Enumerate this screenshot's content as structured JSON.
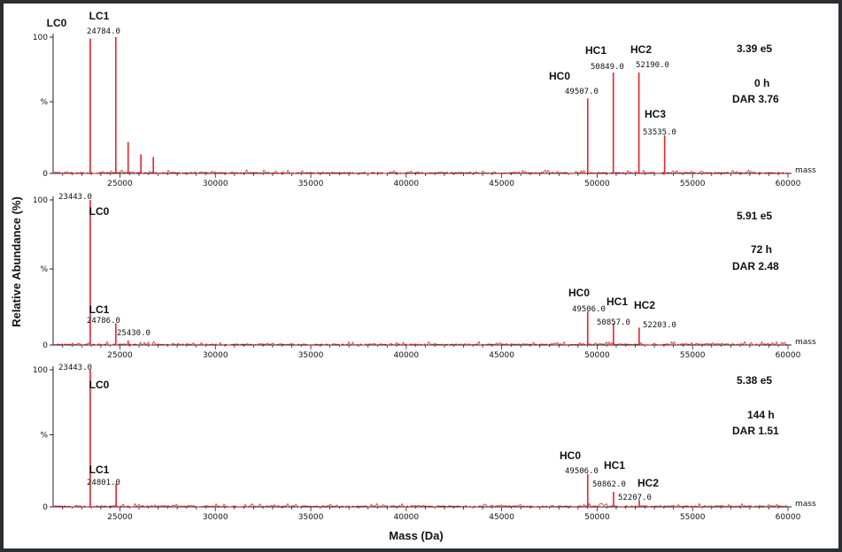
{
  "chart_data": {
    "type": "line",
    "xlabel": "Mass (Da)",
    "ylabel": "Relative Abundance (%)",
    "x_unit": "mass",
    "xlim": [
      21500,
      60000
    ],
    "ylim": [
      0,
      100
    ],
    "x_ticks": [
      25000,
      30000,
      35000,
      40000,
      45000,
      50000,
      55000,
      60000
    ],
    "y_tick_labels": [
      "100",
      "%",
      "0"
    ],
    "panels": [
      {
        "intensity": "3.39 e5",
        "time": "0 h",
        "dar": "DAR 3.76",
        "peaks": [
          {
            "mass": 23443,
            "abundance": 99
          },
          {
            "mass": 24784,
            "abundance": 100
          },
          {
            "mass": 25430,
            "abundance": 23
          },
          {
            "mass": 26100,
            "abundance": 14
          },
          {
            "mass": 26750,
            "abundance": 12
          },
          {
            "mass": 49507,
            "abundance": 55
          },
          {
            "mass": 50849,
            "abundance": 74
          },
          {
            "mass": 52190,
            "abundance": 74
          },
          {
            "mass": 53535,
            "abundance": 28
          }
        ],
        "labels": [
          {
            "name": "LC0",
            "mass_text": ""
          },
          {
            "name": "LC1",
            "mass_text": "24784.0"
          },
          {
            "name": "HC0",
            "mass_text": "49507.0"
          },
          {
            "name": "HC1",
            "mass_text": "50849.0"
          },
          {
            "name": "HC2",
            "mass_text": "52190.0"
          },
          {
            "name": "HC3",
            "mass_text": "53535.0"
          }
        ]
      },
      {
        "intensity": "5.91 e5",
        "time": "72 h",
        "dar": "DAR 2.48",
        "peaks": [
          {
            "mass": 23443,
            "abundance": 100
          },
          {
            "mass": 24786,
            "abundance": 15
          },
          {
            "mass": 25430,
            "abundance": 3
          },
          {
            "mass": 49506,
            "abundance": 23
          },
          {
            "mass": 50857,
            "abundance": 15
          },
          {
            "mass": 52203,
            "abundance": 12
          }
        ],
        "labels": [
          {
            "name": "LC0",
            "mass_text": "23443.0"
          },
          {
            "name": "LC1",
            "mass_text": "24786.0"
          },
          {
            "name": "",
            "mass_text": "25430.0"
          },
          {
            "name": "HC0",
            "mass_text": "49506.0"
          },
          {
            "name": "HC1",
            "mass_text": "50857.0"
          },
          {
            "name": "HC2",
            "mass_text": "52203.0"
          }
        ]
      },
      {
        "intensity": "5.38 e5",
        "time": "144 h",
        "dar": "DAR 1.51",
        "peaks": [
          {
            "mass": 23443,
            "abundance": 100
          },
          {
            "mass": 24801,
            "abundance": 17
          },
          {
            "mass": 49506,
            "abundance": 24
          },
          {
            "mass": 50862,
            "abundance": 11
          },
          {
            "mass": 52207,
            "abundance": 5
          }
        ],
        "labels": [
          {
            "name": "LC0",
            "mass_text": "23443.0"
          },
          {
            "name": "LC1",
            "mass_text": "24801.0"
          },
          {
            "name": "HC0",
            "mass_text": "49506.0"
          },
          {
            "name": "HC1",
            "mass_text": "50862.0"
          },
          {
            "name": "HC2",
            "mass_text": "52207.0"
          }
        ]
      }
    ]
  }
}
